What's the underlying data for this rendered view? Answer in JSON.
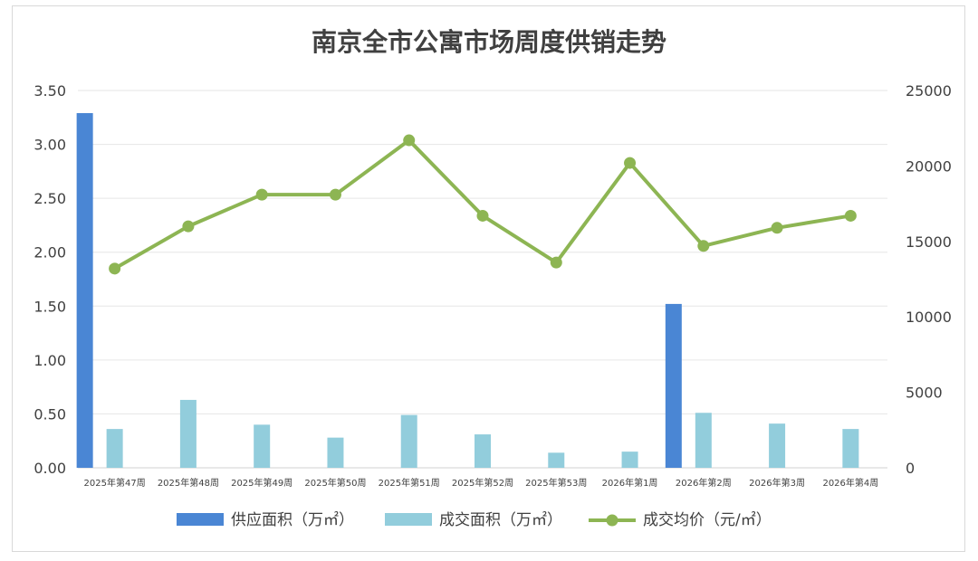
{
  "chart_data": {
    "type": "bar+line",
    "title": "南京全市公寓市场周度供销走势",
    "categories": [
      "2025年第47周",
      "2025年第48周",
      "2025年第49周",
      "2025年第50周",
      "2025年第51周",
      "2025年第52周",
      "2025年第53周",
      "2026年第1周",
      "2026年第2周",
      "2026年第3周",
      "2026年第4周"
    ],
    "y_left": {
      "ylim": [
        0,
        3.5
      ],
      "ticks": [
        "0.00",
        "0.50",
        "1.00",
        "1.50",
        "2.00",
        "2.50",
        "3.00",
        "3.50"
      ]
    },
    "y_right": {
      "ylim": [
        0,
        25000
      ],
      "ticks": [
        "0",
        "5000",
        "10000",
        "15000",
        "20000",
        "25000"
      ]
    },
    "grid": true,
    "legend_position": "bottom",
    "series": [
      {
        "name": "供应面积（万㎡）",
        "type": "bar",
        "axis": "left",
        "color": "#4a86d4",
        "values": [
          3.29,
          null,
          null,
          null,
          null,
          null,
          null,
          null,
          1.52,
          null,
          null
        ]
      },
      {
        "name": "成交面积（万㎡）",
        "type": "bar",
        "axis": "left",
        "color": "#92cddc",
        "values": [
          0.36,
          0.63,
          0.4,
          0.28,
          0.49,
          0.31,
          0.14,
          0.15,
          0.51,
          0.41,
          0.36
        ]
      },
      {
        "name": "成交均价（元/㎡）",
        "type": "line",
        "axis": "right",
        "color": "#8db553",
        "values": [
          13200,
          16000,
          18100,
          18100,
          21700,
          16700,
          13600,
          20200,
          14700,
          15900,
          16700
        ]
      }
    ]
  }
}
